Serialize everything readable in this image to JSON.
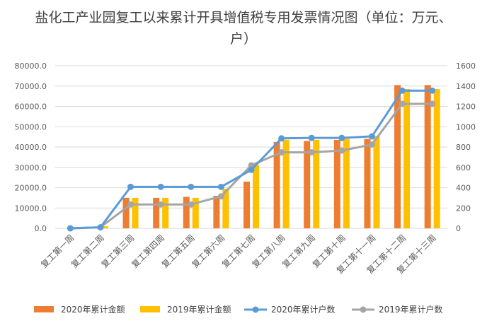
{
  "chart_data": {
    "type": "bar",
    "title": "盐化工产业园复工以来累计开具增值税专用发票情况图（单位：万元、户）",
    "categories": [
      "复工第一周",
      "复工第二周",
      "复工第三周",
      "复工第四周",
      "复工第五周",
      "复工第六周",
      "复工第七周",
      "复工第八周",
      "复工第九周",
      "复工第十周",
      "复工第十一周",
      "复工第十二周",
      "复工第十三周"
    ],
    "y_left": {
      "min": 0,
      "max": 80000,
      "step": 10000,
      "tick_decimals": 1
    },
    "y_right": {
      "min": 0,
      "max": 1600,
      "step": 200
    },
    "grid": true,
    "legend_position": "bottom",
    "series": [
      {
        "name": "2020年累计金额",
        "type": "bar",
        "axis": "left",
        "color": "#ED7D31",
        "values": [
          0,
          300,
          15000,
          15000,
          15500,
          16000,
          23000,
          42500,
          43000,
          43500,
          44000,
          70500,
          70500
        ]
      },
      {
        "name": "2019年累计金额",
        "type": "bar",
        "axis": "left",
        "color": "#FFC000",
        "values": [
          0,
          1000,
          15000,
          15000,
          15000,
          19500,
          31000,
          43500,
          43500,
          44000,
          45500,
          68500,
          68500
        ]
      },
      {
        "name": "2020年累计户数",
        "type": "line",
        "axis": "right",
        "color": "#5B9BD5",
        "values": [
          0,
          10,
          408,
          408,
          408,
          408,
          575,
          885,
          890,
          890,
          905,
          1355,
          1355
        ]
      },
      {
        "name": "2019年累计户数",
        "type": "line",
        "axis": "right",
        "color": "#A5A5A5",
        "values": [
          0,
          10,
          235,
          235,
          235,
          315,
          620,
          748,
          748,
          765,
          825,
          1225,
          1225
        ]
      }
    ]
  }
}
